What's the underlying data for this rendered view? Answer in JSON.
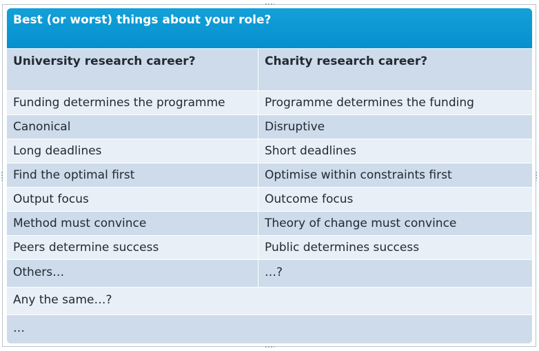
{
  "table": {
    "title": "Best (or worst) things about your role?",
    "column_headers": [
      "University  research  career?",
      "Charity research career?"
    ],
    "rows": [
      [
        "Funding determines the programme",
        "Programme determines the funding"
      ],
      [
        "Canonical",
        "Disruptive"
      ],
      [
        "Long deadlines",
        "Short deadlines"
      ],
      [
        "Find the optimal first",
        "Optimise within constraints first"
      ],
      [
        "Output focus",
        "Outcome focus"
      ],
      [
        "Method must convince",
        "Theory of change must convince"
      ],
      [
        "Peers determine success",
        "Public determines success"
      ],
      [
        "Others…",
        "…?"
      ]
    ],
    "footer_rows": [
      "Any the same…?",
      "…"
    ]
  },
  "colors": {
    "header": "#0a95d3",
    "row_dark": "#cddbea",
    "row_light": "#e8eff7",
    "text": "#222a33"
  }
}
